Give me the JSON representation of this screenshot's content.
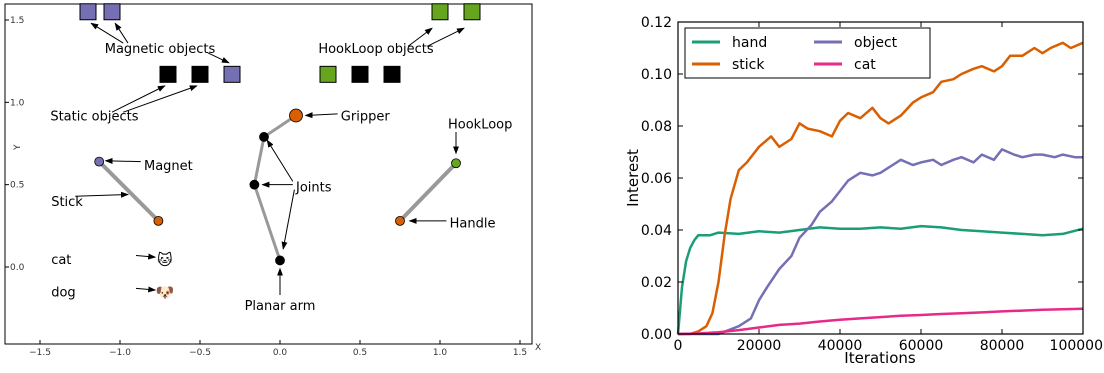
{
  "chart_data": [
    {
      "type": "scatter",
      "xlabel": "X",
      "ylabel": "Y",
      "xlim": [
        -1.6,
        1.6
      ],
      "ylim": [
        -0.5,
        1.6
      ],
      "xticks": [
        -1.5,
        -1.0,
        -0.5,
        0.0,
        0.5,
        1.0,
        1.5
      ],
      "xtick_labels": [
        "−1.5",
        "−1.0",
        "−0.5",
        "0.0",
        "0.5",
        "1.0",
        "1.5"
      ],
      "yticks": [
        0.0,
        0.5,
        1.0,
        1.5
      ],
      "ytick_labels": [
        "0.0",
        "0.5",
        "1.0",
        "1.5"
      ],
      "colors": {
        "magnet": "#7570b3",
        "stick": "#d95f02",
        "hookloop": "#66a61e",
        "static": "#000000",
        "link": "#999999"
      },
      "objects": [
        {
          "type": "magnetic",
          "x": -1.2,
          "y": 1.55
        },
        {
          "type": "magnetic",
          "x": -1.05,
          "y": 1.55
        },
        {
          "type": "magnetic",
          "x": -0.3,
          "y": 1.17
        },
        {
          "type": "static",
          "x": -0.7,
          "y": 1.17
        },
        {
          "type": "static",
          "x": -0.5,
          "y": 1.17
        },
        {
          "type": "static",
          "x": 0.5,
          "y": 1.17
        },
        {
          "type": "static",
          "x": 0.7,
          "y": 1.17
        },
        {
          "type": "hookloop",
          "x": 0.3,
          "y": 1.17
        },
        {
          "type": "hookloop",
          "x": 1.0,
          "y": 1.55
        },
        {
          "type": "hookloop",
          "x": 1.2,
          "y": 1.55
        }
      ],
      "tools": [
        {
          "name": "stick",
          "end": [
            -1.13,
            0.64
          ],
          "handle": [
            -0.76,
            0.28
          ]
        },
        {
          "name": "hookloop",
          "end": [
            1.1,
            0.63
          ],
          "handle": [
            0.75,
            0.28
          ]
        }
      ],
      "arm": [
        [
          0.0,
          0.04
        ],
        [
          -0.16,
          0.5
        ],
        [
          -0.1,
          0.79
        ],
        [
          0.1,
          0.92
        ]
      ],
      "distractors": [
        {
          "label": "cat",
          "x": -0.72,
          "y": 0.05,
          "glyph": "🐱"
        },
        {
          "label": "dog",
          "x": -0.72,
          "y": -0.15,
          "glyph": "🐶"
        }
      ],
      "annotations": [
        {
          "text": "Magnetic objects",
          "x": -0.75,
          "y": 1.33
        },
        {
          "text": "Static objects",
          "x": -1.16,
          "y": 0.92
        },
        {
          "text": "Magnet",
          "x": -0.85,
          "y": 0.62
        },
        {
          "text": "Stick",
          "x": -1.43,
          "y": 0.4
        },
        {
          "text": "cat",
          "x": -1.43,
          "y": 0.05
        },
        {
          "text": "dog",
          "x": -1.43,
          "y": -0.15
        },
        {
          "text": "Gripper",
          "x": 0.38,
          "y": 0.92
        },
        {
          "text": "Joints",
          "x": 0.1,
          "y": 0.49
        },
        {
          "text": "Planar arm",
          "x": 0.0,
          "y": -0.23
        },
        {
          "text": "HookLoop objects",
          "x": 0.6,
          "y": 1.33
        },
        {
          "text": "HookLoop",
          "x": 1.05,
          "y": 0.87
        },
        {
          "text": "Handle",
          "x": 1.06,
          "y": 0.27
        }
      ]
    },
    {
      "type": "line",
      "xlabel": "Iterations",
      "ylabel": "Interest",
      "xlim": [
        0,
        100000
      ],
      "ylim": [
        0.0,
        0.12
      ],
      "xticks": [
        0,
        20000,
        40000,
        60000,
        80000,
        100000
      ],
      "xtick_labels": [
        "0",
        "20000",
        "40000",
        "60000",
        "80000",
        "100000"
      ],
      "yticks": [
        0.0,
        0.02,
        0.04,
        0.06,
        0.08,
        0.1,
        0.12
      ],
      "ytick_labels": [
        "0.00",
        "0.02",
        "0.04",
        "0.06",
        "0.08",
        "0.10",
        "0.12"
      ],
      "legend_position": "top-left",
      "legend_columns": 2,
      "series": [
        {
          "name": "hand",
          "color": "#1b9e77",
          "x": [
            0,
            1000,
            2000,
            3000,
            4000,
            5000,
            6000,
            8000,
            10000,
            15000,
            20000,
            25000,
            30000,
            35000,
            40000,
            45000,
            50000,
            55000,
            60000,
            65000,
            70000,
            75000,
            80000,
            85000,
            90000,
            95000,
            100000
          ],
          "y": [
            0.0,
            0.018,
            0.028,
            0.033,
            0.036,
            0.038,
            0.038,
            0.038,
            0.039,
            0.0385,
            0.0395,
            0.039,
            0.04,
            0.041,
            0.0405,
            0.0405,
            0.041,
            0.0405,
            0.0415,
            0.041,
            0.04,
            0.0395,
            0.039,
            0.0385,
            0.038,
            0.0385,
            0.0405
          ]
        },
        {
          "name": "stick",
          "color": "#d95f02",
          "x": [
            0,
            3000,
            5000,
            7000,
            8500,
            10000,
            11500,
            13000,
            15000,
            17000,
            20000,
            23000,
            25000,
            28000,
            30000,
            32000,
            35000,
            38000,
            40000,
            42000,
            45000,
            48000,
            50000,
            52000,
            55000,
            58000,
            60000,
            63000,
            65000,
            68000,
            70000,
            73000,
            75000,
            78000,
            80000,
            82000,
            85000,
            88000,
            90000,
            92000,
            95000,
            97000,
            100000
          ],
          "y": [
            0.0,
            0.0,
            0.001,
            0.003,
            0.008,
            0.02,
            0.038,
            0.052,
            0.063,
            0.066,
            0.072,
            0.076,
            0.072,
            0.075,
            0.081,
            0.079,
            0.078,
            0.076,
            0.082,
            0.085,
            0.083,
            0.087,
            0.083,
            0.081,
            0.084,
            0.089,
            0.091,
            0.093,
            0.097,
            0.098,
            0.1,
            0.102,
            0.103,
            0.101,
            0.103,
            0.107,
            0.107,
            0.11,
            0.108,
            0.11,
            0.112,
            0.11,
            0.112
          ]
        },
        {
          "name": "object",
          "color": "#7570b3",
          "x": [
            0,
            10000,
            15000,
            18000,
            20000,
            22000,
            25000,
            28000,
            30000,
            33000,
            35000,
            38000,
            40000,
            42000,
            45000,
            48000,
            50000,
            52000,
            55000,
            58000,
            60000,
            63000,
            65000,
            68000,
            70000,
            73000,
            75000,
            78000,
            80000,
            83000,
            85000,
            88000,
            90000,
            93000,
            95000,
            98000,
            100000
          ],
          "y": [
            0.0,
            0.0,
            0.003,
            0.006,
            0.013,
            0.018,
            0.025,
            0.03,
            0.037,
            0.042,
            0.047,
            0.051,
            0.055,
            0.059,
            0.062,
            0.061,
            0.062,
            0.064,
            0.067,
            0.065,
            0.066,
            0.067,
            0.065,
            0.067,
            0.068,
            0.066,
            0.069,
            0.067,
            0.071,
            0.069,
            0.068,
            0.069,
            0.069,
            0.068,
            0.069,
            0.068,
            0.068
          ]
        },
        {
          "name": "cat",
          "color": "#e7298a",
          "x": [
            0,
            5000,
            10000,
            15000,
            20000,
            25000,
            30000,
            35000,
            40000,
            45000,
            50000,
            55000,
            60000,
            65000,
            70000,
            75000,
            80000,
            85000,
            90000,
            95000,
            100000
          ],
          "y": [
            0.0,
            0.0002,
            0.0007,
            0.0015,
            0.0025,
            0.0035,
            0.004,
            0.0048,
            0.0055,
            0.006,
            0.0065,
            0.007,
            0.0073,
            0.0077,
            0.008,
            0.0083,
            0.0087,
            0.009,
            0.0093,
            0.0095,
            0.0097
          ]
        }
      ]
    }
  ]
}
